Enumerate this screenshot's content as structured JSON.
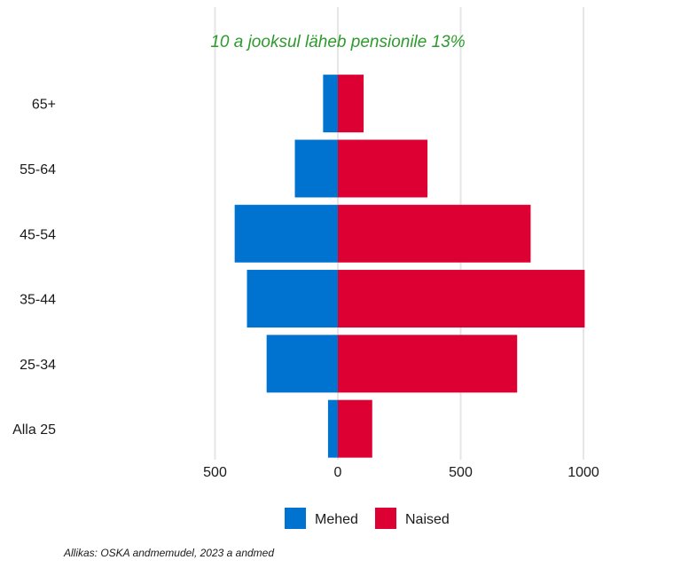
{
  "chart_data": {
    "type": "bar",
    "orientation": "horizontal-population-pyramid",
    "subtitle": "10 a jooksul läheb pensionile 13%",
    "subtitle_color": "#2e9a2e",
    "categories": [
      "65+",
      "55-64",
      "45-54",
      "35-44",
      "25-34",
      "Alla 25"
    ],
    "series": [
      {
        "name": "Mehed",
        "color": "#0072d0",
        "values": [
          -60,
          -175,
          -420,
          -370,
          -290,
          -40
        ]
      },
      {
        "name": "Naised",
        "color": "#dd0033",
        "values": [
          105,
          365,
          785,
          1005,
          730,
          140
        ]
      }
    ],
    "x_ticks": [
      {
        "value": -500,
        "label": "500"
      },
      {
        "value": 0,
        "label": "0"
      },
      {
        "value": 500,
        "label": "500"
      },
      {
        "value": 1000,
        "label": "1000"
      }
    ],
    "xlim": [
      -500,
      1000
    ],
    "grid": "vertical",
    "legend_position": "bottom"
  },
  "source": "Allikas: OSKA andmemudel, 2023 a andmed"
}
